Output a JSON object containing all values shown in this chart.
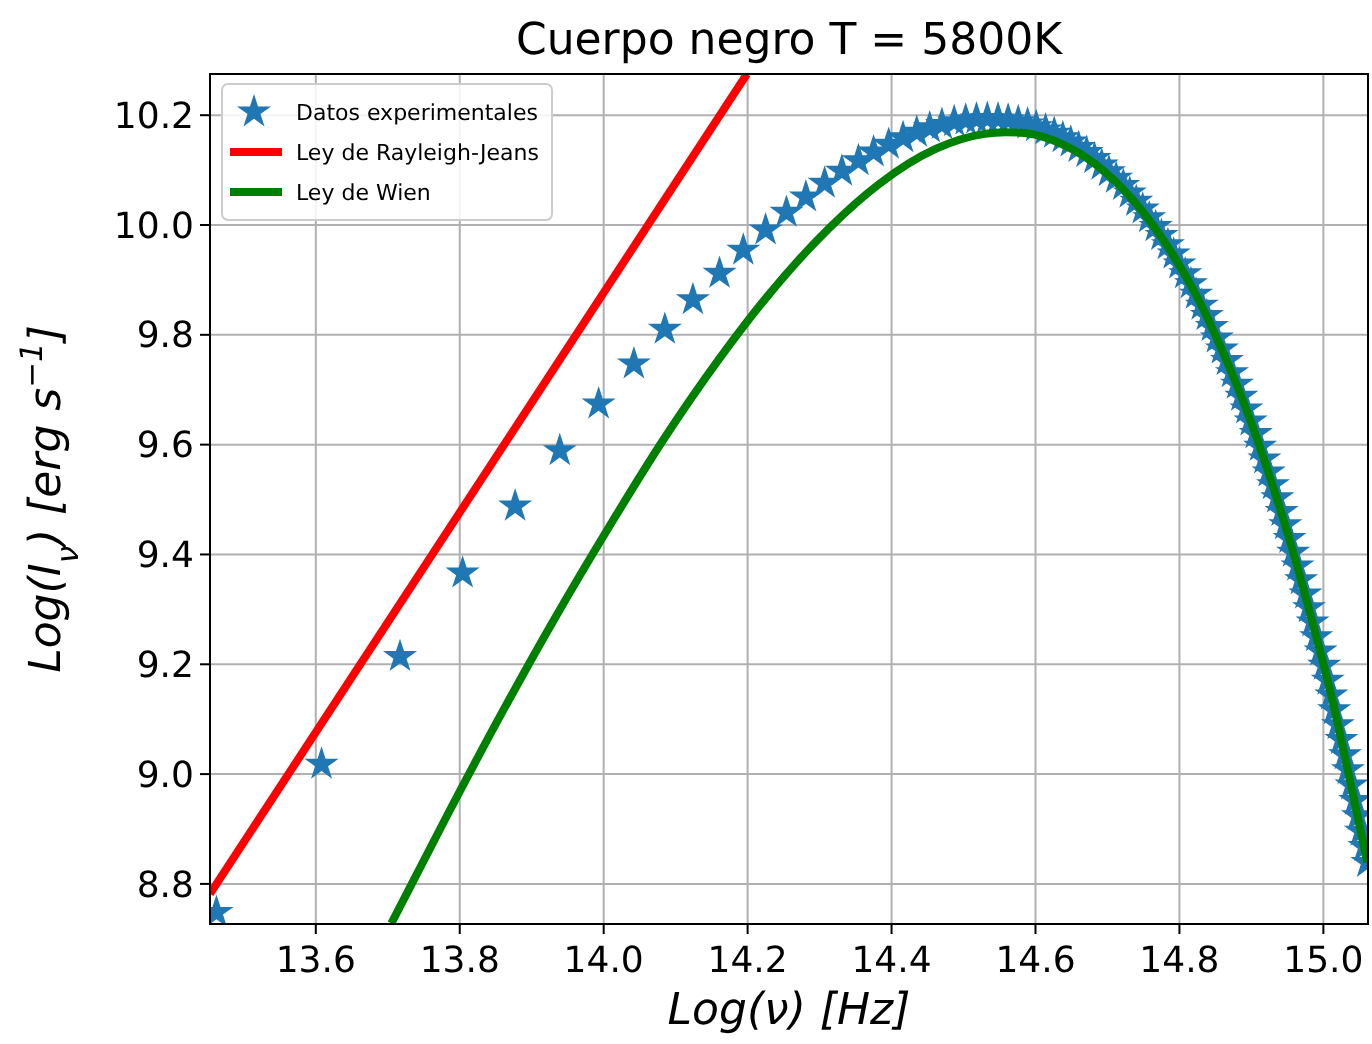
{
  "chart_data": {
    "type": "scatter",
    "title": "Cuerpo negro T = 5800K",
    "xlabel": "Log(ν) [Hz]",
    "ylabel": "Log(I$_{ν}$) [erg s$^{−1}$]",
    "xlim": [
      13.453,
      15.062
    ],
    "ylim": [
      8.727,
      10.275
    ],
    "xticks": [
      13.6,
      13.8,
      {
        "value": 14,
        "label": "14.0"
      },
      14.2,
      14.4,
      14.6,
      14.8,
      {
        "value": 15,
        "label": "15.0"
      }
    ],
    "yticks": [
      8.8,
      {
        "value": 9,
        "label": "9.0"
      },
      9.2,
      9.4,
      9.6,
      9.8,
      {
        "value": 10,
        "label": "10.0"
      },
      10.2
    ],
    "grid": true,
    "legend": "top left",
    "series": [
      {
        "name": "Datos experimentales",
        "marker": "star",
        "color": "#1f77b4",
        "x": [
          13.462,
          13.608,
          13.717,
          13.804,
          13.877,
          13.939,
          13.993,
          14.042,
          14.085,
          14.124,
          14.161,
          14.194,
          14.225,
          14.254,
          14.281,
          14.307,
          14.331,
          14.354,
          14.375,
          14.396,
          14.416,
          14.435,
          14.453,
          14.47,
          14.487,
          14.503,
          14.518,
          14.533,
          14.548,
          14.562,
          14.576,
          14.589,
          14.601,
          14.614,
          14.626,
          14.638,
          14.649,
          14.66,
          14.671,
          14.682,
          14.692,
          14.702,
          14.712,
          14.722,
          14.731,
          14.74,
          14.749,
          14.758,
          14.767,
          14.775,
          14.784,
          14.792,
          14.8,
          14.808,
          14.816,
          14.823,
          14.831,
          14.838,
          14.845,
          14.852,
          14.859,
          14.866,
          14.873,
          14.88,
          14.886,
          14.893,
          14.899,
          14.906,
          14.912,
          14.918,
          14.924,
          14.93,
          14.936,
          14.942,
          14.947,
          14.953,
          14.958,
          14.964,
          14.969,
          14.975,
          14.98,
          14.985,
          14.99,
          14.996,
          15.001,
          15.006,
          15.011,
          15.015,
          15.02,
          15.025,
          15.03,
          15.034,
          15.039,
          15.044,
          15.048,
          15.052,
          15.057,
          15.061
        ],
        "values": [
          8.748,
          9.018,
          9.214,
          9.366,
          9.488,
          9.589,
          9.674,
          9.747,
          9.81,
          9.864,
          9.912,
          9.954,
          9.991,
          10.023,
          10.051,
          10.076,
          10.098,
          10.117,
          10.133,
          10.147,
          10.159,
          10.169,
          10.177,
          10.183,
          10.188,
          10.191,
          10.193,
          10.194,
          10.193,
          10.191,
          10.188,
          10.184,
          10.179,
          10.173,
          10.167,
          10.159,
          10.151,
          10.141,
          10.132,
          10.121,
          10.109,
          10.097,
          10.085,
          10.072,
          10.058,
          10.043,
          10.029,
          10.013,
          9.997,
          9.981,
          9.964,
          9.947,
          9.929,
          9.911,
          9.893,
          9.874,
          9.854,
          9.835,
          9.815,
          9.794,
          9.774,
          9.753,
          9.731,
          9.71,
          9.688,
          9.665,
          9.643,
          9.62,
          9.597,
          9.574,
          9.55,
          9.527,
          9.503,
          9.478,
          9.454,
          9.429,
          9.404,
          9.379,
          9.354,
          9.328,
          9.303,
          9.277,
          9.25,
          9.224,
          9.198,
          9.171,
          9.144,
          9.117,
          9.09,
          9.063,
          9.035,
          9.008,
          8.98,
          8.952,
          8.924,
          8.896,
          8.868,
          8.839
        ]
      },
      {
        "name": "Ley de Rayleigh-Jeans",
        "type": "line",
        "line_style": "solid",
        "color": "#ff0000",
        "x": [
          13.453,
          14.199
        ],
        "values": [
          8.782,
          10.275
        ]
      },
      {
        "name": "Ley de Wien",
        "type": "line",
        "line_style": "solid",
        "color": "#008000",
        "x": [
          13.705,
          13.781,
          13.86,
          13.927,
          14.012,
          14.082,
          14.161,
          14.228,
          14.313,
          14.383,
          14.462,
          14.529,
          14.559,
          14.587,
          14.639,
          14.684,
          14.735,
          14.781,
          14.823,
          14.86,
          14.895,
          14.927,
          14.957,
          14.985,
          15.012,
          15.036,
          15.061
        ],
        "values": [
          8.728,
          8.921,
          9.115,
          9.272,
          9.46,
          9.607,
          9.757,
          9.871,
          9.994,
          10.075,
          10.139,
          10.166,
          10.169,
          10.167,
          10.146,
          10.11,
          10.046,
          9.966,
          9.873,
          9.77,
          9.657,
          9.536,
          9.409,
          9.276,
          9.138,
          8.995,
          8.839
        ]
      }
    ]
  }
}
